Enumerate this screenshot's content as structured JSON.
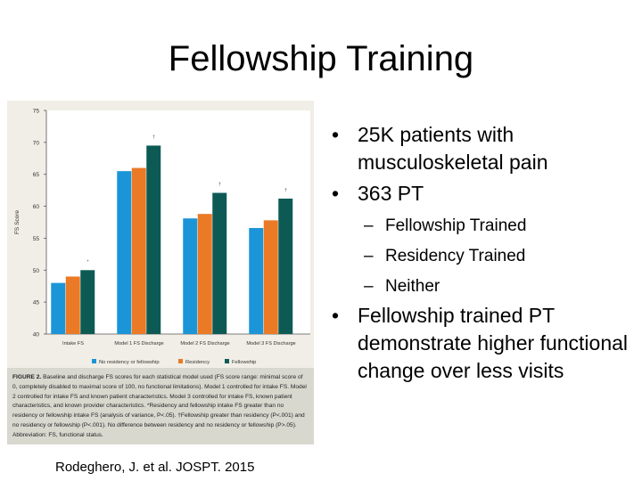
{
  "slide": {
    "title": "Fellowship Training",
    "bullets": [
      {
        "level": 1,
        "text": "25K patients with musculoskeletal pain"
      },
      {
        "level": 1,
        "text": "363 PT"
      },
      {
        "level": 2,
        "text": "Fellowship Trained"
      },
      {
        "level": 2,
        "text": "Residency Trained"
      },
      {
        "level": 2,
        "text": "Neither"
      },
      {
        "level": 1,
        "text": "Fellowship trained PT demonstrate higher functional change over less visits"
      }
    ],
    "citation": "Rodeghero, J. et al. JOSPT. 2015"
  },
  "figure": {
    "caption_label": "FIGURE 2.",
    "caption_text": " Baseline and discharge FS scores for each statistical model used (FS score range: minimal score of 0, completely disabled to maximal score of 100, no functional limitations). Model 1 controlled for intake FS. Model 2 controlled for intake FS and known patient characteristics. Model 3 controlled for intake FS, known patient characteristics, and known provider characteristics. *Residency and fellowship intake FS greater than no residency or fellowship intake FS (analysis of variance, P<.05). †Fellowship greater than residency (P<.001) and no residency or fellowship (P<.001). No difference between residency and no residency or fellowship (P>.05). Abbreviation: FS, functional status."
  },
  "chart_data": {
    "type": "bar",
    "ylabel": "FS Score",
    "xlabel": "",
    "ylim": [
      40,
      75
    ],
    "yticks": [
      40,
      45,
      50,
      55,
      60,
      65,
      70,
      75
    ],
    "categories": [
      "Intake FS",
      "Model 1 FS Discharge",
      "Model 2 FS Discharge",
      "Model 3 FS Discharge"
    ],
    "series": [
      {
        "name": "No residency or fellowship",
        "color": "#1b95d8",
        "values": [
          48.0,
          65.5,
          58.1,
          56.6
        ]
      },
      {
        "name": "Residency",
        "color": "#ea7a26",
        "values": [
          49.0,
          66.0,
          58.8,
          57.8
        ]
      },
      {
        "name": "Fellowship",
        "color": "#0d5a55",
        "values": [
          50.0,
          69.5,
          62.1,
          61.2
        ]
      }
    ],
    "annotations": [
      "*",
      "†",
      "†",
      "†"
    ],
    "legend_position": "bottom",
    "grid": false
  }
}
